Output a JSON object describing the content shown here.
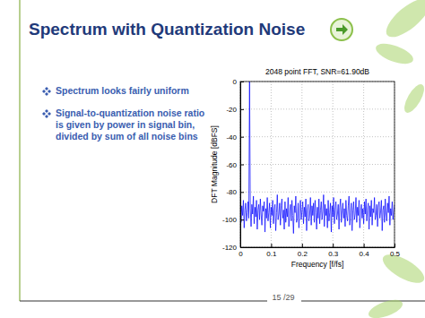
{
  "slide": {
    "title": "Spectrum with Quantization Noise",
    "bullets": [
      "Spectrum looks fairly uniform",
      "Signal-to-quantization noise ratio is given by power in signal bin, divided by sum of all noise bins"
    ],
    "footer": "15 /29"
  },
  "chart_data": {
    "type": "line",
    "title": "2048 point FFT, SNR=61.90dB",
    "x_label": "Frequency [f/fs]",
    "y_label": "DFT Magnitude [dBFS]",
    "color": "#0000ff",
    "grid": true,
    "xlim": [
      0,
      0.5
    ],
    "ylim": [
      -120,
      0
    ],
    "xticks": [
      0,
      0.1,
      0.2,
      0.3,
      0.4,
      0.5
    ],
    "yticks": [
      -120,
      -100,
      -80,
      -60,
      -40,
      -20,
      0
    ],
    "x": [
      0,
      0.0025,
      0.005,
      0.0075,
      0.01,
      0.0125,
      0.015,
      0.0175,
      0.02,
      0.0225,
      0.025,
      0.0275,
      0.03,
      0.0325,
      0.035,
      0.0375,
      0.04,
      0.0425,
      0.045,
      0.0475,
      0.05,
      0.0525,
      0.055,
      0.0575,
      0.06,
      0.0625,
      0.065,
      0.0675,
      0.07,
      0.0725,
      0.075,
      0.0775,
      0.08,
      0.0825,
      0.085,
      0.0875,
      0.09,
      0.0925,
      0.095,
      0.0975,
      0.1,
      0.1025,
      0.105,
      0.1075,
      0.11,
      0.1125,
      0.115,
      0.1175,
      0.12,
      0.1225,
      0.125,
      0.1275,
      0.13,
      0.1325,
      0.135,
      0.1375,
      0.14,
      0.1425,
      0.145,
      0.1475,
      0.15,
      0.1525,
      0.155,
      0.1575,
      0.16,
      0.1625,
      0.165,
      0.1675,
      0.17,
      0.1725,
      0.175,
      0.1775,
      0.18,
      0.1825,
      0.185,
      0.1875,
      0.19,
      0.1925,
      0.195,
      0.1975,
      0.2,
      0.2025,
      0.205,
      0.2075,
      0.21,
      0.2125,
      0.215,
      0.2175,
      0.22,
      0.2225,
      0.225,
      0.2275,
      0.23,
      0.2325,
      0.235,
      0.2375,
      0.24,
      0.2425,
      0.245,
      0.2475,
      0.25,
      0.2525,
      0.255,
      0.2575,
      0.26,
      0.2625,
      0.265,
      0.2675,
      0.27,
      0.2725,
      0.275,
      0.2775,
      0.28,
      0.2825,
      0.285,
      0.2875,
      0.29,
      0.2925,
      0.295,
      0.2975,
      0.3,
      0.3025,
      0.305,
      0.3075,
      0.31,
      0.3125,
      0.315,
      0.3175,
      0.32,
      0.3225,
      0.325,
      0.3275,
      0.33,
      0.3325,
      0.335,
      0.3375,
      0.34,
      0.3425,
      0.345,
      0.3475,
      0.35,
      0.3525,
      0.355,
      0.3575,
      0.36,
      0.3625,
      0.365,
      0.3675,
      0.37,
      0.3725,
      0.375,
      0.3775,
      0.38,
      0.3825,
      0.385,
      0.3875,
      0.39,
      0.3925,
      0.395,
      0.3975,
      0.4,
      0.4025,
      0.405,
      0.4075,
      0.41,
      0.4125,
      0.415,
      0.4175,
      0.42,
      0.4225,
      0.425,
      0.4275,
      0.43,
      0.4325,
      0.435,
      0.4375,
      0.44,
      0.4425,
      0.445,
      0.4475,
      0.45,
      0.4525,
      0.455,
      0.4575,
      0.46,
      0.4625,
      0.465,
      0.4675,
      0.47,
      0.4725,
      0.475,
      0.4775,
      0.48,
      0.4825,
      0.485,
      0.4875,
      0.49,
      0.4925,
      0.495,
      0.4975,
      0.5
    ],
    "values": [
      -84,
      -102,
      -90,
      -97,
      -86,
      -106,
      -93,
      -88,
      -101,
      -95,
      -87,
      -99,
      0,
      -92,
      -105,
      -89,
      -96,
      -83,
      -103,
      -91,
      -98,
      -86,
      -107,
      -93,
      -89,
      -100,
      -85,
      -96,
      -104,
      -90,
      -94,
      -87,
      -109,
      -92,
      -99,
      -84,
      -101,
      -95,
      -88,
      -106,
      -91,
      -97,
      -86,
      -103,
      -93,
      -89,
      -108,
      -95,
      -82,
      -100,
      -96,
      -88,
      -104,
      -90,
      -85,
      -99,
      -93,
      -107,
      -87,
      -102,
      -92,
      -98,
      -84,
      -105,
      -94,
      -89,
      -101,
      -86,
      -97,
      -110,
      -90,
      -95,
      -83,
      -102,
      -99,
      -88,
      -106,
      -92,
      -86,
      -100,
      -94,
      -87,
      -103,
      -91,
      -98,
      -85,
      -108,
      -93,
      -89,
      -101,
      -96,
      -84,
      -104,
      -90,
      -97,
      -88,
      -102,
      -86,
      -95,
      -107,
      -91,
      -99,
      -85,
      -103,
      -93,
      -87,
      -100,
      -94,
      -82,
      -105,
      -89,
      -97,
      -92,
      -106,
      -86,
      -101,
      -95,
      -88,
      -109,
      -90,
      -98,
      -84,
      -103,
      -93,
      -87,
      -100,
      -96,
      -89,
      -107,
      -91,
      -85,
      -102,
      -94,
      -88,
      -99,
      -92,
      -105,
      -86,
      -97,
      -101,
      -90,
      -83,
      -104,
      -95,
      -88,
      -108,
      -93,
      -87,
      -100,
      -96,
      -84,
      -102,
      -91,
      -97,
      -86,
      -106,
      -94,
      -89,
      -99,
      -92,
      -103,
      -87,
      -96,
      -85,
      -101,
      -93,
      -88,
      -107,
      -90,
      -98,
      -86,
      -104,
      -92,
      -95,
      -84,
      -100,
      -97,
      -89,
      -105,
      -91,
      -87,
      -99,
      -94,
      -86,
      -108,
      -93,
      -90,
      -102,
      -85,
      -96,
      -101,
      -88,
      -95,
      -83,
      -104,
      -92,
      -97,
      -87,
      -100,
      -94,
      -89
    ]
  }
}
